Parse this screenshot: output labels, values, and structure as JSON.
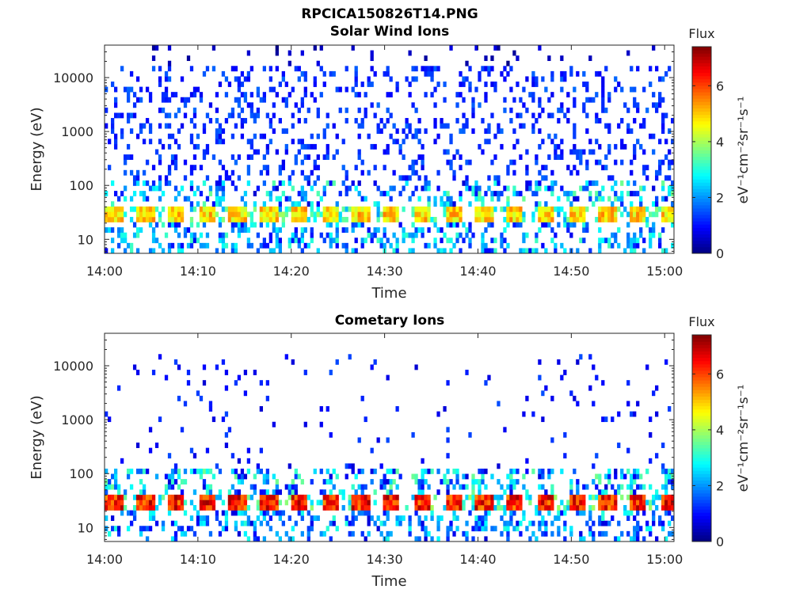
{
  "figure": {
    "title": "RPCICA150826T14.PNG"
  },
  "colorbar": {
    "label_top": "Flux",
    "unit_text": "eV⁻¹cm⁻²sr⁻¹s⁻¹",
    "ticks": [
      "0",
      "2",
      "4",
      "6"
    ],
    "range": [
      0,
      7.4
    ],
    "colormap": "jet"
  },
  "chart_data": [
    {
      "type": "heatmap",
      "title": "Solar Wind Ions",
      "xlabel": "Time",
      "ylabel": "Energy (eV)",
      "x_ticks": [
        "14:00",
        "14:10",
        "14:20",
        "14:30",
        "14:40",
        "14:50",
        "15:00"
      ],
      "y_ticks": [
        "10",
        "100",
        "1000",
        "10000"
      ],
      "y_scale": "log",
      "ylim": [
        5.5,
        40000
      ],
      "xlim": [
        "14:00",
        "15:01"
      ],
      "z_range": [
        0,
        7.4
      ],
      "z_label": "Flux",
      "features": {
        "band_energy_eV": [
          22,
          42
        ],
        "band_peak_flux": 5.6,
        "band_period_min": 3.3,
        "background_flux": 0.8
      }
    },
    {
      "type": "heatmap",
      "title": "Cometary Ions",
      "xlabel": "Time",
      "ylabel": "Energy (eV)",
      "x_ticks": [
        "14:00",
        "14:10",
        "14:20",
        "14:30",
        "14:40",
        "14:50",
        "15:00"
      ],
      "y_ticks": [
        "10",
        "100",
        "1000",
        "10000"
      ],
      "y_scale": "log",
      "ylim": [
        5.5,
        40000
      ],
      "xlim": [
        "14:00",
        "15:01"
      ],
      "z_range": [
        0,
        7.4
      ],
      "z_label": "Flux",
      "features": {
        "band_energy_eV": [
          20,
          42
        ],
        "band_peak_flux": 7.2,
        "band_period_min": 3.3,
        "background_flux": 0.6
      }
    }
  ]
}
